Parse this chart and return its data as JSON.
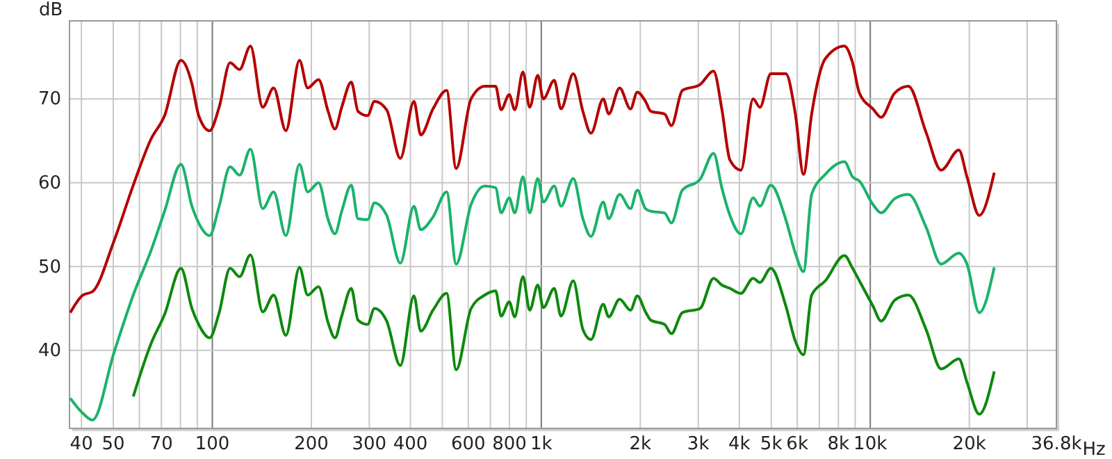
{
  "chart_data": {
    "type": "line",
    "ylabel": "dB",
    "log": "x",
    "xlabel": "Hz",
    "grid": true,
    "marker": "none",
    "line_style": "solid",
    "xlim": [
      36.8,
      36800
    ],
    "ylim": [
      30.7,
      79.3
    ],
    "xticks": [
      40,
      50,
      {
        "value": 60,
        "label": null
      },
      70,
      {
        "value": 80,
        "label": null
      },
      {
        "value": 90,
        "label": null
      },
      100,
      200,
      300,
      400,
      {
        "value": 500,
        "label": null
      },
      600,
      {
        "value": 700,
        "label": null
      },
      800,
      {
        "value": 900,
        "label": null
      },
      {
        "value": 1000,
        "label": "1k"
      },
      {
        "value": 2000,
        "label": "2k"
      },
      {
        "value": 3000,
        "label": "3k"
      },
      {
        "value": 4000,
        "label": "4k"
      },
      {
        "value": 5000,
        "label": "5k"
      },
      {
        "value": 6000,
        "label": "6k"
      },
      {
        "value": 7000,
        "label": null
      },
      {
        "value": 8000,
        "label": "8k"
      },
      {
        "value": 9000,
        "label": null
      },
      {
        "value": 10000,
        "label": "10k"
      },
      {
        "value": 20000,
        "label": "20k"
      },
      {
        "value": 30000,
        "label": null
      },
      {
        "value": 36800,
        "label": "36.8k"
      }
    ],
    "yticks": [
      40,
      50,
      60,
      70
    ],
    "x": [
      37,
      40.4,
      43.2,
      50.3,
      57.5,
      65.1,
      71.6,
      80.3,
      86.7,
      90.9,
      98.1,
      104.9,
      113.2,
      121,
      130.6,
      142.3,
      153.6,
      167.3,
      184.1,
      194.9,
      210.4,
      224.9,
      235.9,
      247.4,
      264.5,
      277.4,
      296.5,
      311.1,
      338.8,
      372.8,
      410.1,
      430.1,
      468.6,
      515.5,
      551,
      611.8,
      673.3,
      726.5,
      754.7,
      799.2,
      830.3,
      879.5,
      922,
      976,
      1014,
      1095,
      1148,
      1251,
      1338,
      1416,
      1543,
      1603,
      1730,
      1867,
      1958,
      2074,
      2154,
      2370,
      2486,
      2683,
      3037,
      3340,
      3538,
      3745,
      4043,
      4405,
      4620,
      4986,
      5538,
      5920,
      6268,
      6636,
      7302,
      8344,
      8837,
      9267,
      10190,
      10790,
      11870,
      13060,
      14780,
      16420,
      18590,
      19680,
      21450,
      23820
    ],
    "series": [
      {
        "color": "#b40000",
        "values": [
          44.5,
          46.6,
          47.0,
          53.1,
          59.7,
          65.2,
          68.0,
          74.6,
          71.8,
          68.0,
          66.2,
          69.0,
          74.3,
          73.5,
          76.3,
          69.0,
          71.3,
          66.2,
          74.6,
          71.3,
          72.3,
          68.5,
          66.4,
          69.0,
          72.0,
          68.5,
          68.0,
          69.7,
          68.7,
          62.9,
          69.7,
          65.7,
          68.8,
          71.0,
          61.7,
          70.0,
          71.5,
          71.5,
          68.7,
          70.5,
          68.7,
          73.2,
          69.0,
          72.8,
          70.0,
          72.2,
          68.8,
          73.0,
          68.5,
          65.9,
          70.0,
          68.2,
          71.3,
          68.8,
          70.8,
          69.7,
          68.5,
          68.2,
          66.8,
          71.0,
          71.7,
          73.3,
          68.8,
          62.7,
          61.5,
          70.0,
          69.0,
          73.0,
          73.0,
          68.2,
          61.0,
          68.2,
          74.8,
          76.3,
          74.3,
          70.7,
          68.8,
          67.8,
          70.7,
          71.5,
          66.0,
          61.5,
          63.9,
          60.7,
          56.1,
          61.2
        ]
      },
      {
        "color": "#1ab36a",
        "values": [
          34.3,
          32.5,
          31.7,
          39.8,
          46.6,
          51.9,
          56.6,
          62.2,
          57.2,
          55.2,
          53.7,
          57.2,
          61.9,
          60.9,
          64.0,
          56.9,
          58.9,
          53.7,
          62.2,
          58.9,
          60.0,
          55.6,
          53.9,
          56.6,
          59.7,
          55.7,
          55.6,
          57.6,
          56.1,
          50.4,
          57.2,
          54.4,
          55.9,
          58.9,
          50.3,
          57.4,
          59.6,
          59.4,
          56.4,
          58.2,
          56.4,
          60.7,
          56.4,
          60.5,
          57.7,
          59.6,
          57.2,
          60.5,
          55.7,
          53.6,
          57.7,
          55.7,
          58.6,
          56.9,
          59.1,
          56.9,
          56.6,
          56.4,
          55.2,
          59.1,
          60.4,
          63.5,
          59.4,
          56.1,
          53.9,
          58.2,
          57.2,
          59.7,
          55.6,
          51.6,
          49.4,
          58.6,
          61.0,
          62.5,
          60.7,
          60.2,
          57.4,
          56.4,
          58.1,
          58.6,
          54.7,
          50.3,
          51.6,
          50.3,
          44.5,
          49.9
        ]
      },
      {
        "color": "#0d890d",
        "values": [
          null,
          null,
          null,
          null,
          34.5,
          40.8,
          44.3,
          49.8,
          45.0,
          43.1,
          41.5,
          44.5,
          49.8,
          48.8,
          51.4,
          44.6,
          46.6,
          41.8,
          49.9,
          46.6,
          47.6,
          43.3,
          41.5,
          44.1,
          47.4,
          43.6,
          43.1,
          45.0,
          43.5,
          38.2,
          46.5,
          42.3,
          44.8,
          46.8,
          37.7,
          45.0,
          46.6,
          47.1,
          44.1,
          45.8,
          44.0,
          48.8,
          44.8,
          47.8,
          45.1,
          47.4,
          44.1,
          48.3,
          42.5,
          41.3,
          45.5,
          44.0,
          46.1,
          44.8,
          46.5,
          44.6,
          43.6,
          43.1,
          42.0,
          44.5,
          45.0,
          48.6,
          47.8,
          47.4,
          46.8,
          48.6,
          48.1,
          49.8,
          45.3,
          41.1,
          39.5,
          46.6,
          48.3,
          51.3,
          49.8,
          48.3,
          45.3,
          43.5,
          46.0,
          46.6,
          42.5,
          37.8,
          39.0,
          36.2,
          32.4,
          37.5
        ]
      }
    ]
  }
}
